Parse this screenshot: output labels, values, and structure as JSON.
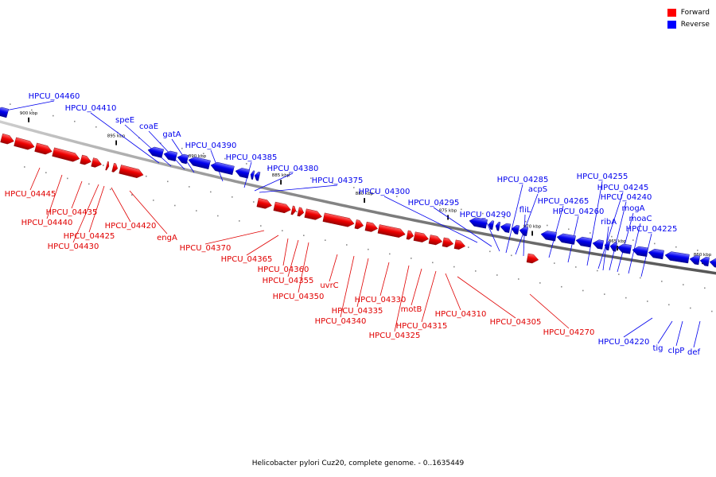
{
  "colors": {
    "forward": "#e00000",
    "reverse": "#0000ee",
    "backbone": "#888888"
  },
  "legend": [
    {
      "label": "Forward",
      "color": "#ff0000"
    },
    {
      "label": "Reverse",
      "color": "#0000ff"
    }
  ],
  "caption": "Helicobacter pylori Cuz20, complete genome. - 0..1635449",
  "ticks": [
    "900 kbp",
    "895 kbp",
    "890 kbp",
    "885 kbp",
    "880 kbp",
    "875 kbp",
    "870 kbp",
    "865 kbp",
    "860 kbp"
  ],
  "forward_genes": [
    "HPCU_04445",
    "HPCU_04440",
    "HPCU_04435",
    "HPCU_04430",
    "HPCU_04425",
    "HPCU_04420",
    "engA",
    "HPCU_04370",
    "HPCU_04365",
    "HPCU_04360",
    "HPCU_04355",
    "HPCU_04350",
    "uvrC",
    "HPCU_04340",
    "HPCU_04335",
    "HPCU_04330",
    "HPCU_04325",
    "motB",
    "HPCU_04315",
    "HPCU_04310",
    "HPCU_04305",
    "HPCU_04270"
  ],
  "reverse_genes": [
    "HPCU_04460",
    "HPCU_04410",
    "speE",
    "coaE",
    "gatA",
    "HPCU_04390",
    "HPCU_04385",
    "HPCU_04380",
    "HPCU_04375",
    "HPCU_04300",
    "HPCU_04295",
    "HPCU_04290",
    "HPCU_04285",
    "acpS",
    "fliL",
    "HPCU_04265",
    "HPCU_04260",
    "HPCU_04255",
    "HPCU_04245",
    "HPCU_04240",
    "ribA",
    "mogA",
    "moaC",
    "HPCU_04225",
    "HPCU_04220",
    "tig",
    "clpP",
    "def"
  ]
}
